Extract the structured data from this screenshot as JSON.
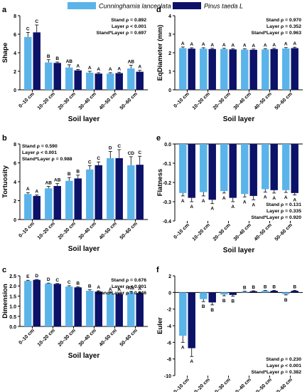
{
  "legend": {
    "position": "top-center",
    "items": [
      {
        "label": "Cunninghamia lanceolata",
        "italic": true,
        "color": "#5ab4ea"
      },
      {
        "label": "Pinus taeda L",
        "italic": true,
        "color": "#0b1268"
      }
    ]
  },
  "colors": {
    "light": "#5ab4ea",
    "dark": "#0b1268",
    "axis": "#000000"
  },
  "chart_data": [
    {
      "type": "bar",
      "panel": "a",
      "categories": [
        "0–10 cm",
        "10–20 cm",
        "20–30 cm",
        "30–40 cm",
        "40–50 cm",
        "50–60 cm"
      ],
      "xlabel": "Soil layer",
      "ylabel": "Shape",
      "ylim": [
        0,
        8
      ],
      "yticks": [
        0,
        2,
        4,
        6,
        8
      ],
      "ytick_labels": [
        "0",
        "2",
        "4",
        "6",
        "8"
      ],
      "series": [
        {
          "name": "Cunninghamia lanceolata",
          "values": [
            5.7,
            2.95,
            2.4,
            1.85,
            1.75,
            2.3
          ],
          "errors": [
            0.5,
            0.3,
            0.3,
            0.15,
            0.1,
            0.35
          ],
          "letters": [
            "C",
            "B",
            "AB",
            "A",
            "A",
            "AB"
          ]
        },
        {
          "name": "Pinus taeda L",
          "values": [
            6.2,
            2.9,
            2.1,
            1.75,
            1.8,
            1.95
          ],
          "errors": [
            0.8,
            0.1,
            0.1,
            0.1,
            0.1,
            0.15
          ],
          "letters": [
            "C",
            "B",
            "A",
            "A",
            "A",
            "A"
          ]
        }
      ],
      "stats": {
        "position": "top-right",
        "lines": [
          "Stand ρ = 0.892",
          "Layer ρ < 0.001",
          "Stand*Layer ρ = 0.697"
        ]
      }
    },
    {
      "type": "bar",
      "panel": "b",
      "categories": [
        "0–10 cm",
        "10–20 cm",
        "20–30 cm",
        "30–40 cm",
        "40–50 cm",
        "50–60 cm"
      ],
      "xlabel": "Soil layer",
      "ylabel": "Tortuosity",
      "ylim": [
        0,
        8
      ],
      "yticks": [
        0,
        2,
        4,
        6,
        8
      ],
      "ytick_labels": [
        "0",
        "2",
        "4",
        "6",
        "8"
      ],
      "series": [
        {
          "name": "Cunninghamia lanceolata",
          "values": [
            2.7,
            3.3,
            4.1,
            5.3,
            6.5,
            5.75
          ],
          "errors": [
            0.15,
            0.2,
            0.35,
            0.4,
            0.7,
            0.9
          ],
          "letters": [
            "A",
            "AB",
            "B",
            "C",
            "D",
            "CD"
          ]
        },
        {
          "name": "Pinus taeda L",
          "values": [
            2.5,
            3.55,
            4.35,
            5.75,
            6.5,
            5.8
          ],
          "errors": [
            0.1,
            0.25,
            0.35,
            0.35,
            0.9,
            0.9
          ],
          "letters": [
            "A",
            "AB",
            "B",
            "C",
            "C",
            "C"
          ]
        }
      ],
      "stats": {
        "position": "top-left",
        "lines": [
          "Stand ρ = 0.590",
          "Layer ρ < 0.001",
          "Stand*Layer ρ = 0.988"
        ]
      }
    },
    {
      "type": "bar",
      "panel": "c",
      "categories": [
        "0–10 cm",
        "10–20 cm",
        "20–30 cm",
        "30–40 cm",
        "40–50 cm",
        "50–60 cm"
      ],
      "xlabel": "Soil layer",
      "ylabel": "Dimension",
      "ylim": [
        0,
        2.5
      ],
      "yticks": [
        0,
        0.5,
        1.0,
        1.5,
        2.0,
        2.5
      ],
      "ytick_labels": [
        "0.0",
        "0.5",
        "1.0",
        "1.5",
        "2.0",
        "2.5"
      ],
      "series": [
        {
          "name": "Cunninghamia lanceolata",
          "values": [
            2.25,
            2.12,
            1.97,
            1.76,
            1.62,
            1.68
          ],
          "errors": [
            0.03,
            0.02,
            0.04,
            0.05,
            0.04,
            0.05
          ],
          "letters": [
            "E",
            "D",
            "C",
            "B",
            "A",
            "AB"
          ]
        },
        {
          "name": "Pinus taeda L",
          "values": [
            2.3,
            2.1,
            1.93,
            1.72,
            1.6,
            1.65
          ],
          "errors": [
            0.02,
            0.02,
            0.03,
            0.04,
            0.03,
            0.04
          ],
          "letters": [
            "D",
            "C",
            "B",
            "A",
            "A",
            "A"
          ]
        }
      ],
      "stats": {
        "position": "top-right",
        "lines": [
          "Stand ρ = 0.676",
          "Layer ρ < 0.001",
          "Stand*Layer ρ = 0.946"
        ]
      }
    },
    {
      "type": "bar",
      "panel": "d",
      "categories": [
        "0–10 cm",
        "10–20 cm",
        "20–30 cm",
        "30–40 cm",
        "40–50 cm",
        "50–60 cm"
      ],
      "xlabel": "Soil layer",
      "ylabel": "EqDiameter (mm)",
      "ylim": [
        0,
        4
      ],
      "yticks": [
        0,
        1,
        2,
        3,
        4
      ],
      "ytick_labels": [
        "0",
        "1",
        "2",
        "3",
        "4"
      ],
      "series": [
        {
          "name": "Cunninghamia lanceolata",
          "values": [
            2.25,
            2.22,
            2.2,
            2.17,
            2.18,
            2.23
          ],
          "errors": [
            0.06,
            0.05,
            0.04,
            0.04,
            0.04,
            0.05
          ],
          "letters": [
            "A",
            "A",
            "A",
            "A",
            "A",
            "A"
          ]
        },
        {
          "name": "Pinus taeda L",
          "values": [
            2.22,
            2.2,
            2.18,
            2.16,
            2.2,
            2.25
          ],
          "errors": [
            0.05,
            0.04,
            0.04,
            0.04,
            0.04,
            0.05
          ],
          "letters": [
            "A",
            "A",
            "A",
            "A",
            "A",
            "A"
          ]
        }
      ],
      "stats": {
        "position": "top-right",
        "lines": [
          "Stand ρ = 0.970",
          "Layer ρ = 0.352",
          "Stand*Layer ρ = 0.963"
        ]
      }
    },
    {
      "type": "bar",
      "panel": "e",
      "categories": [
        "0–10 cm",
        "10–20 cm",
        "20–30 cm",
        "30–40 cm",
        "40–50 cm",
        "50–60 cm"
      ],
      "xlabel": "Soil layer",
      "ylabel": "Flatness",
      "ylim": [
        -0.4,
        0
      ],
      "yticks": [
        0,
        -0.1,
        -0.2,
        -0.3,
        -0.4
      ],
      "ytick_labels": [
        "0.0",
        "-0.1",
        "-0.2",
        "-0.3",
        "-0.4"
      ],
      "series": [
        {
          "name": "Cunninghamia lanceolata",
          "values": [
            -0.255,
            -0.25,
            -0.245,
            -0.26,
            -0.235,
            -0.24
          ],
          "errors": [
            0.015,
            0.02,
            0.01,
            0.015,
            0.015,
            0.012
          ],
          "letters": [
            "A",
            "A",
            "A",
            "A",
            "A",
            "A"
          ]
        },
        {
          "name": "Pinus taeda L",
          "values": [
            -0.28,
            -0.29,
            -0.28,
            -0.27,
            -0.24,
            -0.255
          ],
          "errors": [
            0.02,
            0.02,
            0.02,
            0.02,
            0.015,
            0.01
          ],
          "letters": [
            "A",
            "A",
            "A",
            "A",
            "A",
            "A"
          ]
        }
      ],
      "stats": {
        "position": "bottom-right",
        "lines": [
          "Stand ρ = 0.131",
          "Layer ρ = 0.335",
          "Stand*Layer ρ = 0.920"
        ]
      }
    },
    {
      "type": "bar",
      "panel": "f",
      "categories": [
        "0–10 cm",
        "10–20 cm",
        "20–30 cm",
        "30–40 cm",
        "40–50 cm",
        "50–60 cm"
      ],
      "xlabel": "Soil layer",
      "ylabel": "Euler",
      "ylim": [
        -10,
        2
      ],
      "yticks": [
        2,
        0,
        -2,
        -4,
        -6,
        -8,
        -10
      ],
      "ytick_labels": [
        "2",
        "0",
        "-2",
        "-4",
        "-6",
        "-8",
        "-10"
      ],
      "series": [
        {
          "name": "Cunninghamia lanceolata",
          "values": [
            -5.2,
            -0.8,
            -0.25,
            0.1,
            0.2,
            -0.2
          ],
          "errors": [
            0.8,
            0.3,
            0.15,
            0.05,
            0.05,
            0.1
          ],
          "letters": [
            "A",
            "B",
            "B",
            "B",
            "B",
            "B"
          ]
        },
        {
          "name": "Pinus taeda L",
          "values": [
            -6.7,
            -1.2,
            -0.3,
            0.15,
            0.2,
            0.2
          ],
          "errors": [
            1.0,
            0.3,
            0.15,
            0.05,
            0.05,
            0.05
          ],
          "letters": [
            "A",
            "B",
            "B",
            "B",
            "B",
            "B"
          ]
        }
      ],
      "stats": {
        "position": "bottom-right",
        "lines": [
          "Stand ρ = 0.230",
          "Layer ρ < 0.001",
          "Stand*Layer ρ = 0.382"
        ]
      }
    }
  ]
}
